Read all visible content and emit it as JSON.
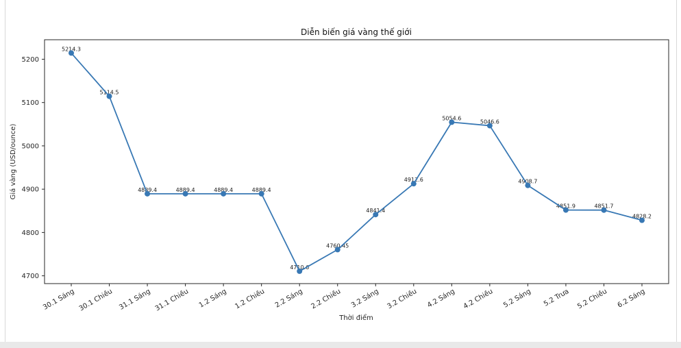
{
  "chart_data": {
    "type": "line",
    "title": "Diễn biến giá vàng thế giới",
    "xlabel": "Thời điểm",
    "ylabel": "Giá vàng (USD/ounce)",
    "categories": [
      "30.1 Sáng",
      "30.1 Chiều",
      "31.1 Sáng",
      "31.1 Chiều",
      "1.2 Sáng",
      "1.2 Chiều",
      "2.2 Sáng",
      "2.2 Chiều",
      "3.2 Sáng",
      "3.2 Chiều",
      "4.2 Sáng",
      "4.2 Chiều",
      "5.2 Sáng",
      "5.2 Trưa",
      "5.2 Chiều",
      "6.2 Sáng"
    ],
    "series": [
      {
        "name": "Giá vàng thế giới",
        "values": [
          5214.3,
          5114.5,
          4889.4,
          4889.4,
          4889.4,
          4889.4,
          4710.6,
          4760.45,
          4841.4,
          4912.6,
          5054.6,
          5046.6,
          4908.7,
          4851.9,
          4851.7,
          4828.2
        ],
        "labels": [
          "5214.3",
          "5114.5",
          "4889.4",
          "4889.4",
          "4889.4",
          "4889.4",
          "4710.6",
          "4760.45",
          "4841.4",
          "4912.6",
          "5054.6",
          "5046.6",
          "4908.7",
          "4851.9",
          "4851.7",
          "4828.2"
        ],
        "color": "#3878b4"
      }
    ],
    "yticks": [
      4700,
      4800,
      4900,
      5000,
      5100,
      5200
    ],
    "ylim": [
      4682,
      5245
    ],
    "grid": false,
    "marker": "circle",
    "x_tick_rotation": 30,
    "legend_position": "none"
  },
  "page": {
    "bottom_strip_color": "#e9e9e9",
    "card_edge_color": "#d9d9d9"
  }
}
